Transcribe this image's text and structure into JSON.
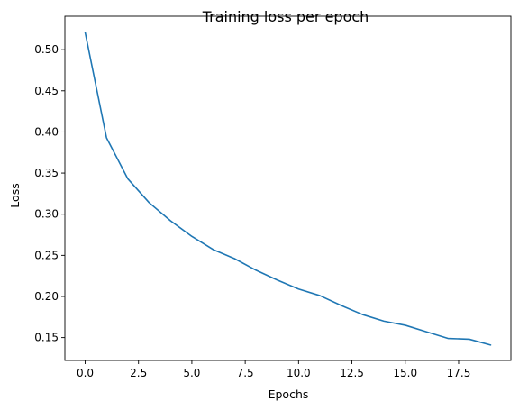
{
  "chart_data": {
    "type": "line",
    "title": "Training loss per epoch",
    "xlabel": "Epochs",
    "ylabel": "Loss",
    "xlim": [
      -0.95,
      19.95
    ],
    "ylim": [
      0.1222,
      0.5407
    ],
    "xticks": [
      0.0,
      2.5,
      5.0,
      7.5,
      10.0,
      12.5,
      15.0,
      17.5
    ],
    "xtick_labels": [
      "0.0",
      "2.5",
      "5.0",
      "7.5",
      "10.0",
      "12.5",
      "15.0",
      "17.5"
    ],
    "yticks": [
      0.15,
      0.2,
      0.25,
      0.3,
      0.35,
      0.4,
      0.45,
      0.5
    ],
    "ytick_labels": [
      "0.15",
      "0.20",
      "0.25",
      "0.30",
      "0.35",
      "0.40",
      "0.45",
      "0.50"
    ],
    "grid": false,
    "series": [
      {
        "color": "#1f77b4",
        "x": [
          0,
          1,
          2,
          3,
          4,
          5,
          6,
          7,
          8,
          9,
          10,
          11,
          12,
          13,
          14,
          15,
          16,
          17,
          18,
          19
        ],
        "y": [
          0.521,
          0.393,
          0.343,
          0.314,
          0.292,
          0.273,
          0.257,
          0.246,
          0.232,
          0.22,
          0.209,
          0.201,
          0.189,
          0.178,
          0.17,
          0.165,
          0.157,
          0.149,
          0.148,
          0.141
        ]
      }
    ]
  }
}
